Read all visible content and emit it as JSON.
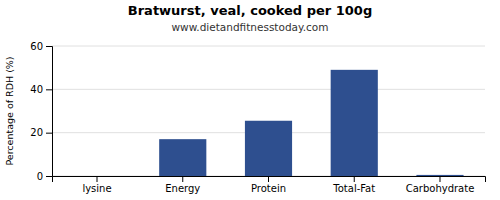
{
  "chart_data": {
    "type": "bar",
    "title": "Bratwurst, veal, cooked per 100g",
    "subtitle": "www.dietandfitnesstoday.com",
    "ylabel": "Percentage of RDH (%)",
    "categories": [
      "lysine",
      "Energy",
      "Protein",
      "Total-Fat",
      "Carbohydrate"
    ],
    "values": [
      0,
      17,
      25.5,
      49,
      0.5
    ],
    "color": "#2e4f8f",
    "ylim": [
      0,
      60
    ],
    "yticks": [
      0,
      20,
      40,
      60
    ],
    "grid": true
  }
}
